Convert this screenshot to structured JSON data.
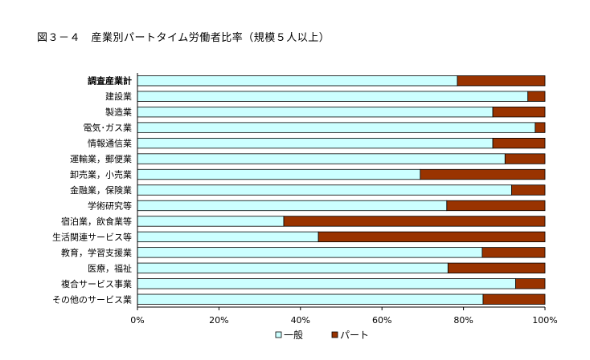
{
  "chart_data": {
    "type": "bar",
    "orientation": "horizontal",
    "stacked": "percent",
    "title": "図３－４　産業別パートタイム労働者比率（規模５人以上）",
    "categories": [
      "調査産業計",
      "建設業",
      "製造業",
      "電気･ガス業",
      "情報通信業",
      "運輸業，郵便業",
      "卸売業，小売業",
      "金融業，保険業",
      "学術研究等",
      "宿泊業，飲食業等",
      "生活関連サービス等",
      "教育，学習支援業",
      "医療，福祉",
      "複合サービス事業",
      "その他のサービス業"
    ],
    "emphasized_category": "調査産業計",
    "series": [
      {
        "name": "一般",
        "color": "#CCFFFF",
        "values": [
          78.5,
          95.8,
          87.2,
          97.6,
          87.2,
          90.2,
          69.4,
          91.8,
          75.9,
          35.9,
          44.4,
          84.6,
          76.2,
          92.8,
          84.8
        ]
      },
      {
        "name": "パート",
        "color": "#993300",
        "values": [
          21.5,
          4.2,
          12.8,
          2.4,
          12.8,
          9.8,
          30.6,
          8.2,
          24.1,
          64.1,
          55.6,
          15.4,
          23.8,
          7.2,
          15.2
        ]
      }
    ],
    "xlim": [
      0,
      100
    ],
    "x_ticks": [
      "0%",
      "20%",
      "40%",
      "60%",
      "80%",
      "100%"
    ],
    "grid": false,
    "legend_position": "bottom"
  }
}
